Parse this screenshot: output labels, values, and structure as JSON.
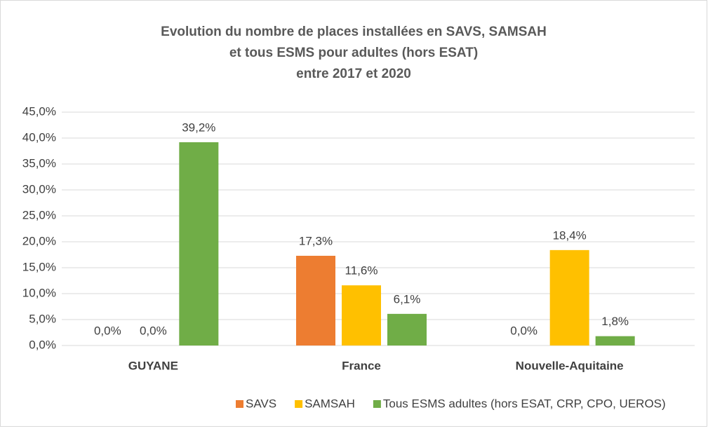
{
  "chart_data": {
    "type": "bar",
    "title": [
      "Evolution du nombre de places installées en SAVS, SAMSAH",
      "et tous ESMS pour adultes (hors ESAT)",
      "entre 2017 et 2020"
    ],
    "categories": [
      "GUYANE",
      "France",
      "Nouvelle-Aquitaine"
    ],
    "series": [
      {
        "name": "SAVS",
        "color": "#ed7d31",
        "values": [
          0,
          17.3,
          0
        ],
        "value_labels": [
          "0,0%",
          "17,3%",
          "0,0%"
        ]
      },
      {
        "name": "SAMSAH",
        "color": "#ffc000",
        "values": [
          0,
          11.6,
          18.4
        ],
        "value_labels": [
          "0,0%",
          "11,6%",
          "18,4%"
        ]
      },
      {
        "name": "Tous ESMS adultes (hors ESAT, CRP, CPO, UEROS)",
        "color": "#70ad47",
        "values": [
          39.2,
          6.1,
          1.8
        ],
        "value_labels": [
          "39,2%",
          "6,1%",
          "1,8%"
        ]
      }
    ],
    "ylim": [
      0,
      45
    ],
    "yticks": [
      {
        "value": 0,
        "label": "0,0%"
      },
      {
        "value": 5,
        "label": "5,0%"
      },
      {
        "value": 10,
        "label": "10,0%"
      },
      {
        "value": 15,
        "label": "15,0%"
      },
      {
        "value": 20,
        "label": "20,0%"
      },
      {
        "value": 25,
        "label": "25,0%"
      },
      {
        "value": 30,
        "label": "30,0%"
      },
      {
        "value": 35,
        "label": "35,0%"
      },
      {
        "value": 40,
        "label": "40,0%"
      },
      {
        "value": 45,
        "label": "45,0%"
      }
    ],
    "grid": true,
    "legend": "bottom"
  }
}
